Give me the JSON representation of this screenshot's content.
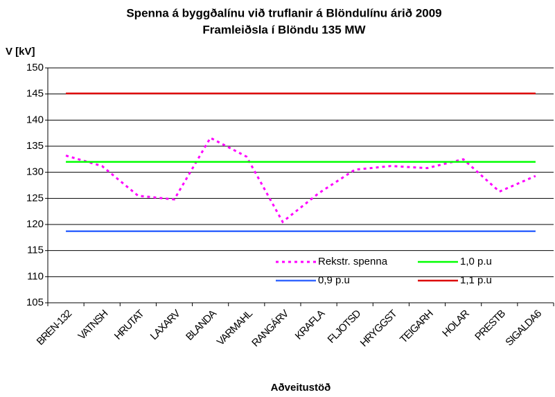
{
  "chart_data": {
    "type": "line",
    "title": "Spenna á byggðalínu við truflanir á Blöndulínu árið 2009",
    "subtitle": "Framleiðsla í Blöndu 135 MW",
    "y_label": "V [kV]",
    "x_label": "Aðveitustöð",
    "categories": [
      "BREN-132",
      "VATNSH",
      "HRUTAT",
      "LAXARV",
      "BLANDA",
      "VARMAHL",
      "RANGÁRV",
      "KRAFLA",
      "FLJOTSD",
      "HRYGGST",
      "TEIGARH",
      "HOLAR",
      "PRESTB",
      "SIGALDA6"
    ],
    "series": [
      {
        "name": "Rekstr. spenna",
        "color": "#ff00ff",
        "dashed": true,
        "values": [
          133.2,
          131.2,
          125.5,
          124.8,
          136.6,
          133,
          120.5,
          126,
          130.5,
          131.2,
          130.8,
          132.5,
          126.3,
          129.3
        ]
      },
      {
        "name": "1,0 p.u",
        "color": "#00ff00",
        "values": [
          132,
          132,
          132,
          132,
          132,
          132,
          132,
          132,
          132,
          132,
          132,
          132,
          132,
          132
        ]
      },
      {
        "name": "0,9 p.u",
        "color": "#3366ff",
        "values": [
          118.7,
          118.7,
          118.7,
          118.7,
          118.7,
          118.7,
          118.7,
          118.7,
          118.7,
          118.7,
          118.7,
          118.7,
          118.7,
          118.7
        ]
      },
      {
        "name": "1,1 p.u",
        "color": "#dd0000",
        "values": [
          145.1,
          145.1,
          145.1,
          145.1,
          145.1,
          145.1,
          145.1,
          145.1,
          145.1,
          145.1,
          145.1,
          145.1,
          145.1,
          145.1
        ]
      }
    ],
    "ylim": [
      105,
      150
    ],
    "yticks": [
      105,
      110,
      115,
      120,
      125,
      130,
      135,
      140,
      145,
      150
    ],
    "grid": true,
    "legend": "lower right"
  }
}
